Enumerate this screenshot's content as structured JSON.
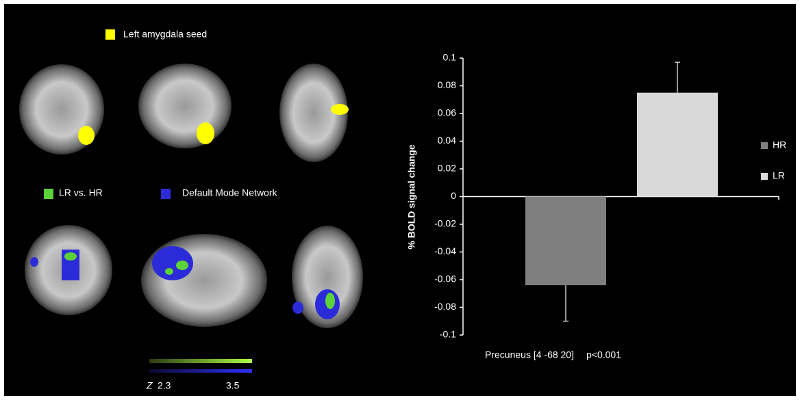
{
  "seed_legend": {
    "label": "Left amygdala seed",
    "color": "#ffff00"
  },
  "contrast_legend": [
    {
      "label": "LR vs. HR",
      "color": "#5cd13a"
    },
    {
      "label": "Default Mode Network",
      "color": "#2b2bd8"
    }
  ],
  "colorbar": {
    "label": "Z",
    "min": 2.3,
    "max": 3.5
  },
  "chart_data": {
    "type": "bar",
    "ylabel": "% BOLD signal change",
    "categories": [
      "Precuneus [4 -68 20]"
    ],
    "annotation": "p<0.001",
    "series": [
      {
        "name": "HR",
        "color": "#7f7f7f",
        "values": [
          -0.064
        ],
        "errors": [
          0.026
        ]
      },
      {
        "name": "LR",
        "color": "#d9d9d9",
        "values": [
          0.075
        ],
        "errors": [
          0.022
        ]
      }
    ],
    "ylim": [
      -0.1,
      0.1
    ],
    "yticks": [
      0.1,
      0.08,
      0.06,
      0.04,
      0.02,
      0,
      -0.02,
      -0.04,
      -0.06,
      -0.08,
      -0.1
    ],
    "legend": "right"
  }
}
